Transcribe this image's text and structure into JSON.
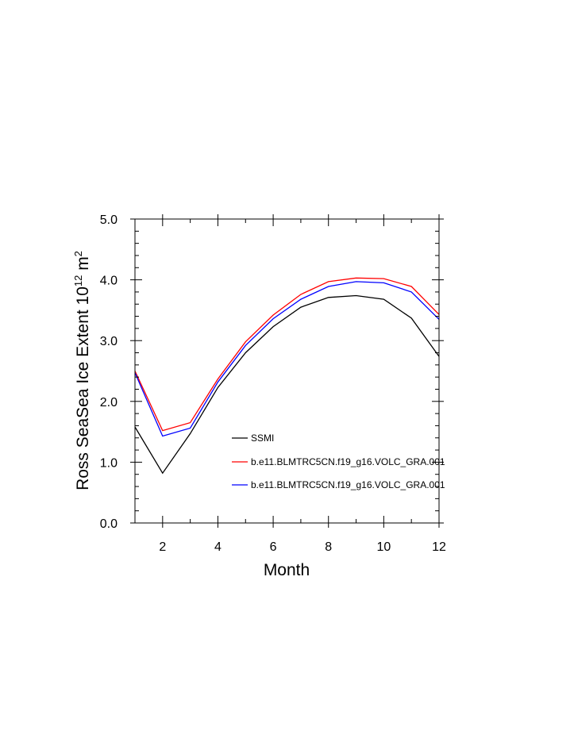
{
  "chart_data": {
    "type": "line",
    "xlabel": "Month",
    "ylabel": {
      "main": "Ross SeaSea Ice Extent 10",
      "superscript1": "12",
      "unit": " m",
      "superscript2": "2"
    },
    "xlim": [
      1,
      12
    ],
    "ylim": [
      0.0,
      5.0
    ],
    "xticks": [
      2,
      4,
      6,
      8,
      10,
      12
    ],
    "yticks": [
      "0.0",
      "1.0",
      "2.0",
      "3.0",
      "4.0",
      "5.0"
    ],
    "x": [
      1,
      2,
      3,
      4,
      5,
      6,
      7,
      8,
      9,
      10,
      11,
      12
    ],
    "series": [
      {
        "name": "SSMI",
        "color": "#000000",
        "values": [
          1.58,
          0.82,
          1.47,
          2.23,
          2.8,
          3.23,
          3.55,
          3.71,
          3.74,
          3.68,
          3.37,
          2.74
        ]
      },
      {
        "name": "b.e11.BLMTRC5CN.f19_g16.VOLC_GRA.001",
        "color": "#ff0000",
        "values": [
          2.5,
          1.52,
          1.65,
          2.37,
          2.98,
          3.42,
          3.76,
          3.97,
          4.03,
          4.02,
          3.89,
          3.43
        ]
      },
      {
        "name": "b.e11.BLMTRC5CN.f19_g16.VOLC_GRA.001",
        "color": "#0000ff",
        "values": [
          2.47,
          1.43,
          1.56,
          2.32,
          2.92,
          3.36,
          3.68,
          3.89,
          3.97,
          3.95,
          3.8,
          3.35
        ]
      }
    ],
    "legend": "bottom-right inside plot",
    "grid": false
  }
}
